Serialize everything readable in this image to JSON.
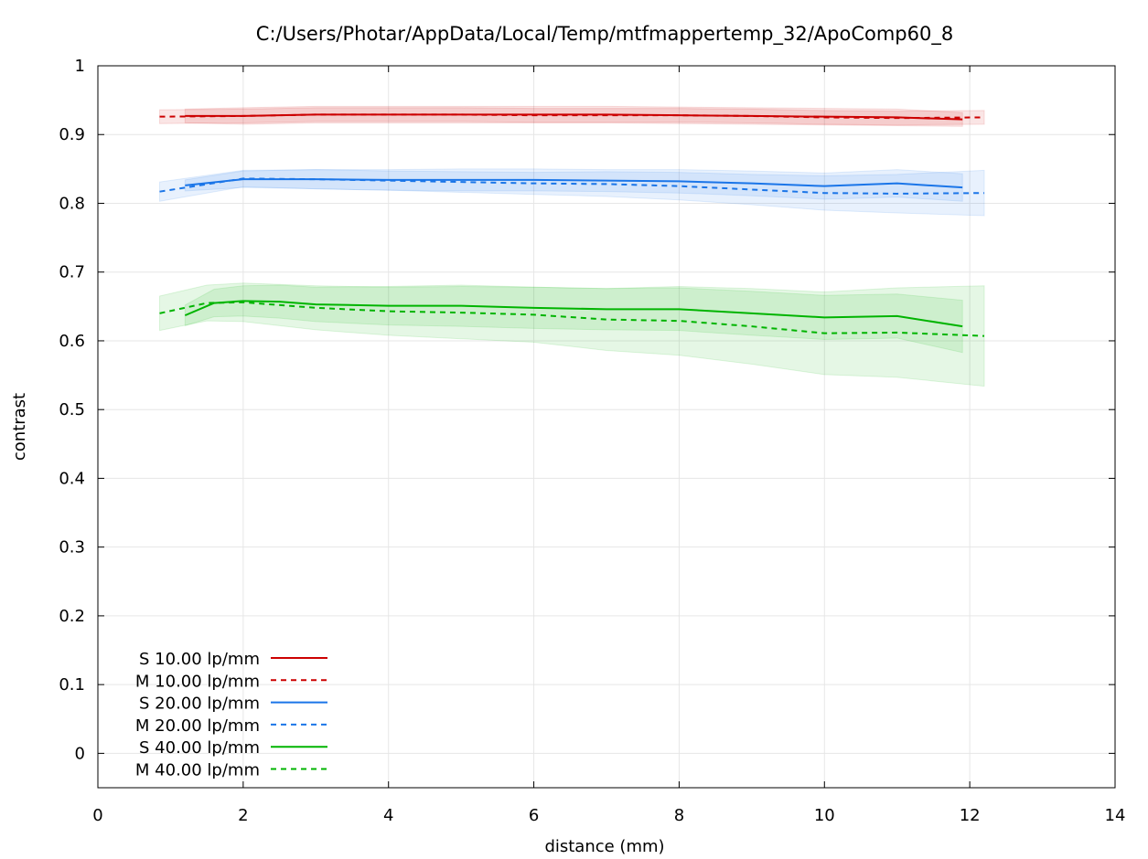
{
  "chart_data": {
    "type": "line",
    "title": "C:/Users/Photar/AppData/Local/Temp/mtfmappertemp_32/ApoComp60_8",
    "xlabel": "distance (mm)",
    "ylabel": "contrast",
    "xlim": [
      0,
      14
    ],
    "ylim": [
      -0.05,
      1
    ],
    "x_ticks": [
      "0",
      "2",
      "4",
      "6",
      "8",
      "10",
      "12",
      "14"
    ],
    "y_ticks": [
      "0",
      "0.1",
      "0.2",
      "0.3",
      "0.4",
      "0.5",
      "0.6",
      "0.7",
      "0.8",
      "0.9",
      "1"
    ],
    "grid": true,
    "legend_position": "bottom-left",
    "series": [
      {
        "name": "S 10.00 lp/mm",
        "color": "#cc0000",
        "dash": false,
        "x": [
          1.2,
          2.0,
          3.0,
          4.0,
          5.0,
          6.0,
          7.0,
          8.0,
          9.0,
          10.0,
          11.0,
          11.9
        ],
        "y": [
          0.927,
          0.927,
          0.929,
          0.929,
          0.929,
          0.929,
          0.929,
          0.928,
          0.927,
          0.926,
          0.925,
          0.922
        ],
        "band": [
          0.01,
          0.012,
          0.012,
          0.012,
          0.012,
          0.012,
          0.012,
          0.012,
          0.012,
          0.012,
          0.012,
          0.01
        ]
      },
      {
        "name": "M 10.00 lp/mm",
        "color": "#cc0000",
        "dash": true,
        "x": [
          0.85,
          2.0,
          3.0,
          4.0,
          5.0,
          6.0,
          7.0,
          8.0,
          9.0,
          10.0,
          11.0,
          12.2
        ],
        "y": [
          0.926,
          0.927,
          0.929,
          0.929,
          0.929,
          0.928,
          0.928,
          0.928,
          0.927,
          0.925,
          0.924,
          0.925
        ],
        "band": [
          0.01,
          0.01,
          0.01,
          0.01,
          0.01,
          0.01,
          0.01,
          0.01,
          0.01,
          0.01,
          0.01,
          0.01
        ]
      },
      {
        "name": "S 20.00 lp/mm",
        "color": "#1a75e8",
        "dash": false,
        "x": [
          1.2,
          2.0,
          3.0,
          4.0,
          5.0,
          6.0,
          7.0,
          8.0,
          9.0,
          10.0,
          11.0,
          11.9
        ],
        "y": [
          0.826,
          0.835,
          0.835,
          0.834,
          0.834,
          0.834,
          0.833,
          0.832,
          0.829,
          0.825,
          0.829,
          0.823
        ],
        "band": [
          0.008,
          0.012,
          0.014,
          0.015,
          0.016,
          0.016,
          0.016,
          0.017,
          0.018,
          0.019,
          0.02,
          0.02
        ]
      },
      {
        "name": "M 20.00 lp/mm",
        "color": "#1a75e8",
        "dash": true,
        "x": [
          0.85,
          2.0,
          3.0,
          4.0,
          5.0,
          6.0,
          7.0,
          8.0,
          9.0,
          10.0,
          11.0,
          12.2
        ],
        "y": [
          0.817,
          0.836,
          0.835,
          0.833,
          0.831,
          0.829,
          0.828,
          0.825,
          0.82,
          0.815,
          0.814,
          0.815
        ],
        "band": [
          0.014,
          0.012,
          0.014,
          0.014,
          0.015,
          0.016,
          0.018,
          0.02,
          0.022,
          0.025,
          0.028,
          0.033
        ]
      },
      {
        "name": "S 40.00 lp/mm",
        "color": "#00b400",
        "dash": false,
        "x": [
          1.2,
          1.6,
          2.0,
          2.5,
          3.0,
          4.0,
          5.0,
          6.0,
          7.0,
          8.0,
          9.0,
          10.0,
          11.0,
          11.9
        ],
        "y": [
          0.637,
          0.655,
          0.658,
          0.657,
          0.653,
          0.651,
          0.651,
          0.648,
          0.646,
          0.646,
          0.64,
          0.634,
          0.636,
          0.621
        ],
        "band": [
          0.015,
          0.02,
          0.022,
          0.024,
          0.025,
          0.028,
          0.03,
          0.03,
          0.03,
          0.031,
          0.032,
          0.032,
          0.032,
          0.038
        ]
      },
      {
        "name": "M 40.00 lp/mm",
        "color": "#00b400",
        "dash": true,
        "x": [
          0.85,
          1.5,
          2.0,
          3.0,
          4.0,
          5.0,
          6.0,
          7.0,
          8.0,
          9.0,
          10.0,
          11.0,
          12.2
        ],
        "y": [
          0.64,
          0.655,
          0.656,
          0.648,
          0.643,
          0.641,
          0.638,
          0.631,
          0.629,
          0.621,
          0.611,
          0.612,
          0.607
        ],
        "band": [
          0.025,
          0.026,
          0.028,
          0.032,
          0.035,
          0.038,
          0.04,
          0.045,
          0.05,
          0.055,
          0.06,
          0.065,
          0.073
        ]
      }
    ]
  }
}
